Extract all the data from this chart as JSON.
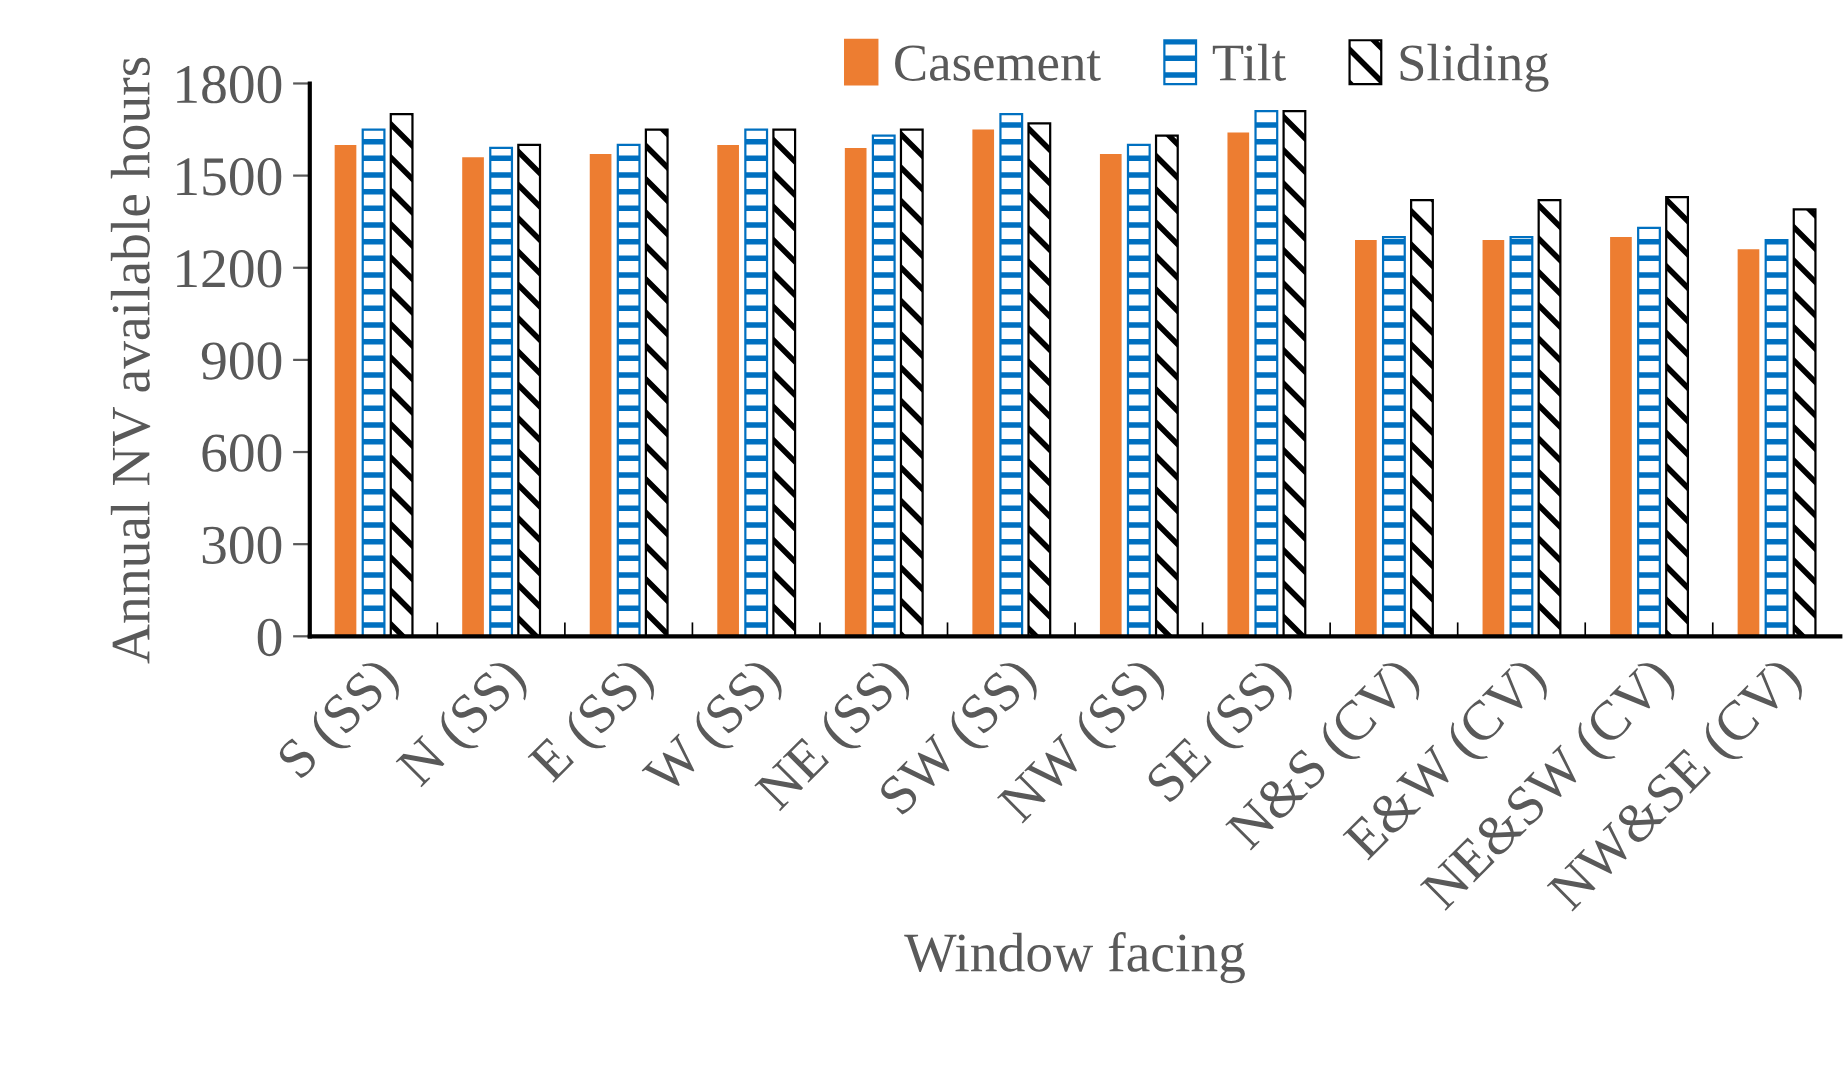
{
  "chart_data": {
    "type": "bar",
    "xlabel": "Window facing",
    "ylabel": "Annual NV available hours",
    "categories": [
      "S (SS)",
      "N (SS)",
      "E (SS)",
      "W (SS)",
      "NE (SS)",
      "SW (SS)",
      "NW (SS)",
      "SE (SS)",
      "N&S (CV)",
      "E&W (CV)",
      "NE&SW (CV)",
      "NW&SE (CV)"
    ],
    "series": [
      {
        "name": "Casement",
        "color": "#ed7d31",
        "values": [
          1600,
          1560,
          1570,
          1600,
          1590,
          1650,
          1570,
          1640,
          1290,
          1290,
          1300,
          1260
        ]
      },
      {
        "name": "Tilt",
        "color": "#0070c0",
        "values": [
          1650,
          1590,
          1600,
          1650,
          1630,
          1700,
          1600,
          1710,
          1300,
          1300,
          1330,
          1290
        ]
      },
      {
        "name": "Sliding",
        "color": "#000000",
        "values": [
          1700,
          1600,
          1650,
          1650,
          1650,
          1670,
          1630,
          1710,
          1420,
          1420,
          1430,
          1390
        ]
      }
    ],
    "ylim": [
      0,
      1800
    ],
    "yticks": [
      0,
      300,
      600,
      900,
      1200,
      1500,
      1800
    ],
    "grid": false,
    "legend": "top"
  }
}
